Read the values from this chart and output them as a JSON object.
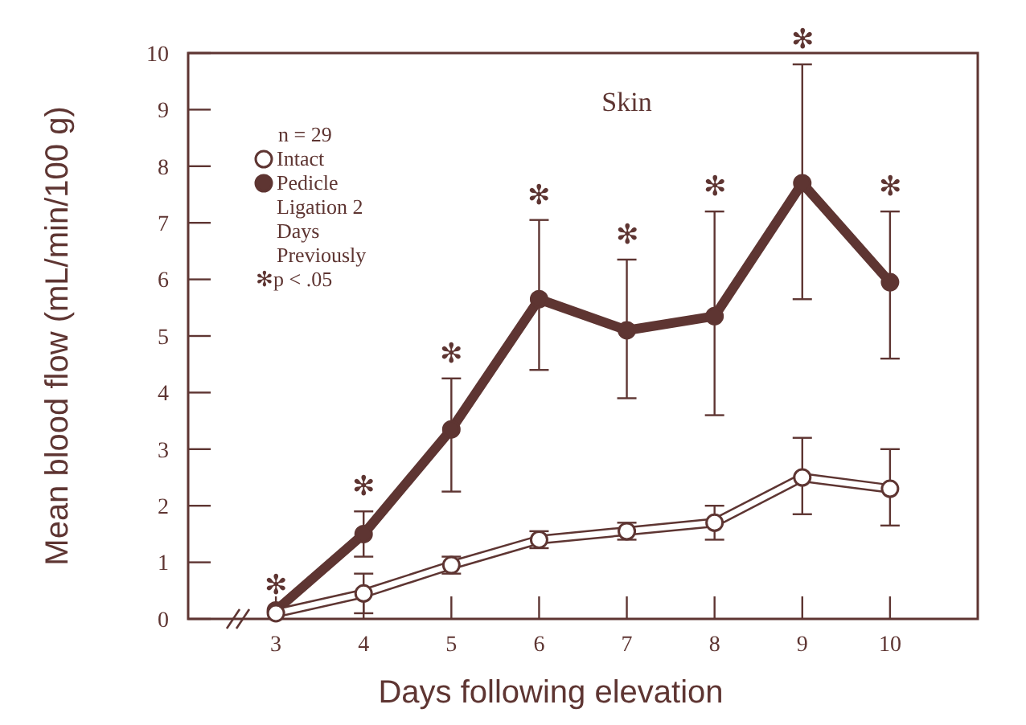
{
  "chart_data": {
    "type": "line",
    "title": "Skin",
    "xlabel": "Days following elevation",
    "ylabel": "Mean blood flow (mL/min/100 g)",
    "legend_title": "n = 29",
    "x": [
      3,
      4,
      5,
      6,
      7,
      8,
      9,
      10
    ],
    "xlim": [
      2,
      11
    ],
    "xticks": [
      3,
      4,
      5,
      6,
      7,
      8,
      9,
      10
    ],
    "ylim": [
      0,
      10
    ],
    "yticks": [
      0,
      1,
      2,
      3,
      4,
      5,
      6,
      7,
      8,
      9,
      10
    ],
    "series": [
      {
        "name": "Intact",
        "color": "#ffffff",
        "values": [
          0.1,
          0.45,
          0.95,
          1.4,
          1.55,
          1.7,
          2.5,
          2.3
        ],
        "errors": [
          null,
          [
            0.1,
            0.8
          ],
          [
            0.8,
            1.1
          ],
          [
            1.25,
            1.55
          ],
          [
            1.4,
            1.7
          ],
          [
            1.4,
            2.0
          ],
          [
            1.85,
            3.2
          ],
          [
            1.65,
            3.0
          ]
        ]
      },
      {
        "name": "Pedicle Ligation 2 Days Previously",
        "color": "#5e3532",
        "values": [
          0.15,
          1.5,
          3.35,
          5.65,
          5.1,
          5.35,
          7.7,
          5.95
        ],
        "errors": [
          null,
          [
            1.1,
            1.9
          ],
          [
            2.25,
            4.25
          ],
          [
            4.4,
            7.05
          ],
          [
            3.9,
            6.35
          ],
          [
            3.6,
            7.2
          ],
          [
            5.65,
            9.8
          ],
          [
            4.6,
            7.2
          ]
        ]
      }
    ],
    "annotations": [
      "✻p < .05",
      {
        "text": "✻",
        "x": 3,
        "y": 0.15
      },
      {
        "text": "✻",
        "x": 4,
        "y": 1.9
      },
      {
        "text": "✻",
        "x": 5,
        "y": 4.25
      },
      {
        "text": "✻",
        "x": 6,
        "y": 7.05
      },
      {
        "text": "✻",
        "x": 7,
        "y": 6.35
      },
      {
        "text": "✻",
        "x": 8,
        "y": 7.2
      },
      {
        "text": "✻",
        "x": 9,
        "y": 9.8
      },
      {
        "text": "✻",
        "x": 10,
        "y": 7.2
      }
    ],
    "legend": "top left",
    "marker": "circle",
    "line_style": "solid",
    "grid": false
  }
}
